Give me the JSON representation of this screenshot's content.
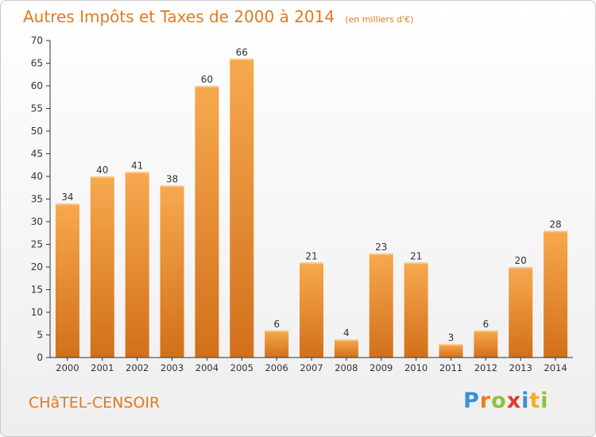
{
  "title": "Autres Impôts et Taxes de 2000 à 2014",
  "subtitle": "(en milliers d'€)",
  "location": "CHâTEL-CENSOIR",
  "logo": {
    "letters": [
      "P",
      "r",
      "o",
      "x",
      "i",
      "t",
      "i"
    ],
    "colors": [
      "#3a8fd8",
      "#ef7f1a",
      "#8bc43f",
      "#e63a2e",
      "#3a8fd8",
      "#f2b01e",
      "#8bc43f"
    ]
  },
  "chart_data": {
    "type": "bar",
    "categories": [
      "2000",
      "2001",
      "2002",
      "2003",
      "2004",
      "2005",
      "2006",
      "2007",
      "2008",
      "2009",
      "2010",
      "2011",
      "2012",
      "2013",
      "2014"
    ],
    "values": [
      34,
      40,
      41,
      38,
      60,
      66,
      6,
      21,
      4,
      23,
      21,
      3,
      6,
      20,
      28
    ],
    "ylim": [
      0,
      70
    ],
    "ytick_step": 5,
    "grid": false,
    "colors": {
      "bar_top": "#f7a94e",
      "bar_bottom": "#d2701a",
      "axis": "#333333",
      "text": "#333333"
    }
  }
}
